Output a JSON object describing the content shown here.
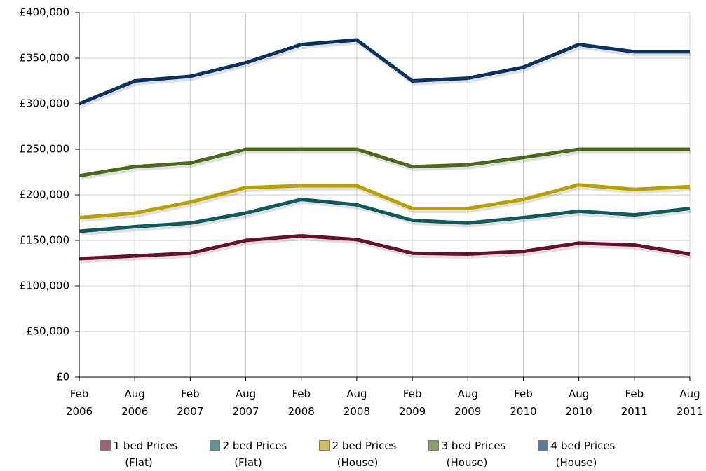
{
  "chart_data": {
    "type": "line",
    "categories": [
      "Feb 2006",
      "Aug 2006",
      "Feb 2007",
      "Aug 2007",
      "Feb 2008",
      "Aug 2008",
      "Feb 2009",
      "Aug 2009",
      "Feb 2010",
      "Aug 2010",
      "Feb 2011",
      "Aug 2011"
    ],
    "series": [
      {
        "name": "1 bed Prices (Flat)",
        "color": "#6b0f2f",
        "values": [
          130000,
          133000,
          136000,
          150000,
          155000,
          151000,
          136000,
          135000,
          138000,
          147000,
          145000,
          135000
        ]
      },
      {
        "name": "2 bed Prices (Flat)",
        "color": "#0f5a5a",
        "values": [
          160000,
          165000,
          169000,
          180000,
          195000,
          189000,
          172000,
          169000,
          175000,
          182000,
          178000,
          185000
        ]
      },
      {
        "name": "2 bed Prices (House)",
        "color": "#b8a000",
        "values": [
          175000,
          180000,
          192000,
          208000,
          210000,
          210000,
          185000,
          185000,
          195000,
          211000,
          206000,
          209000
        ]
      },
      {
        "name": "3 bed Prices (House)",
        "color": "#4a6a1a",
        "values": [
          221000,
          231000,
          235000,
          250000,
          250000,
          250000,
          231000,
          233000,
          241000,
          250000,
          250000,
          250000
        ]
      },
      {
        "name": "4 bed Prices (House)",
        "color": "#0a3260",
        "values": [
          300000,
          325000,
          330000,
          345000,
          365000,
          370000,
          325000,
          328000,
          340000,
          365000,
          357000,
          357000
        ]
      }
    ],
    "ylim": [
      0,
      400000
    ],
    "yticks": [
      {
        "value": 0,
        "label": "£0"
      },
      {
        "value": 50000,
        "label": "£50,000"
      },
      {
        "value": 100000,
        "label": "£100,000"
      },
      {
        "value": 150000,
        "label": "£150,000"
      },
      {
        "value": 200000,
        "label": "£200,000"
      },
      {
        "value": 250000,
        "label": "£250,000"
      },
      {
        "value": 300000,
        "label": "£300,000"
      },
      {
        "value": 350000,
        "label": "£350,000"
      },
      {
        "value": 400000,
        "label": "£400,000"
      }
    ],
    "grid": true
  }
}
